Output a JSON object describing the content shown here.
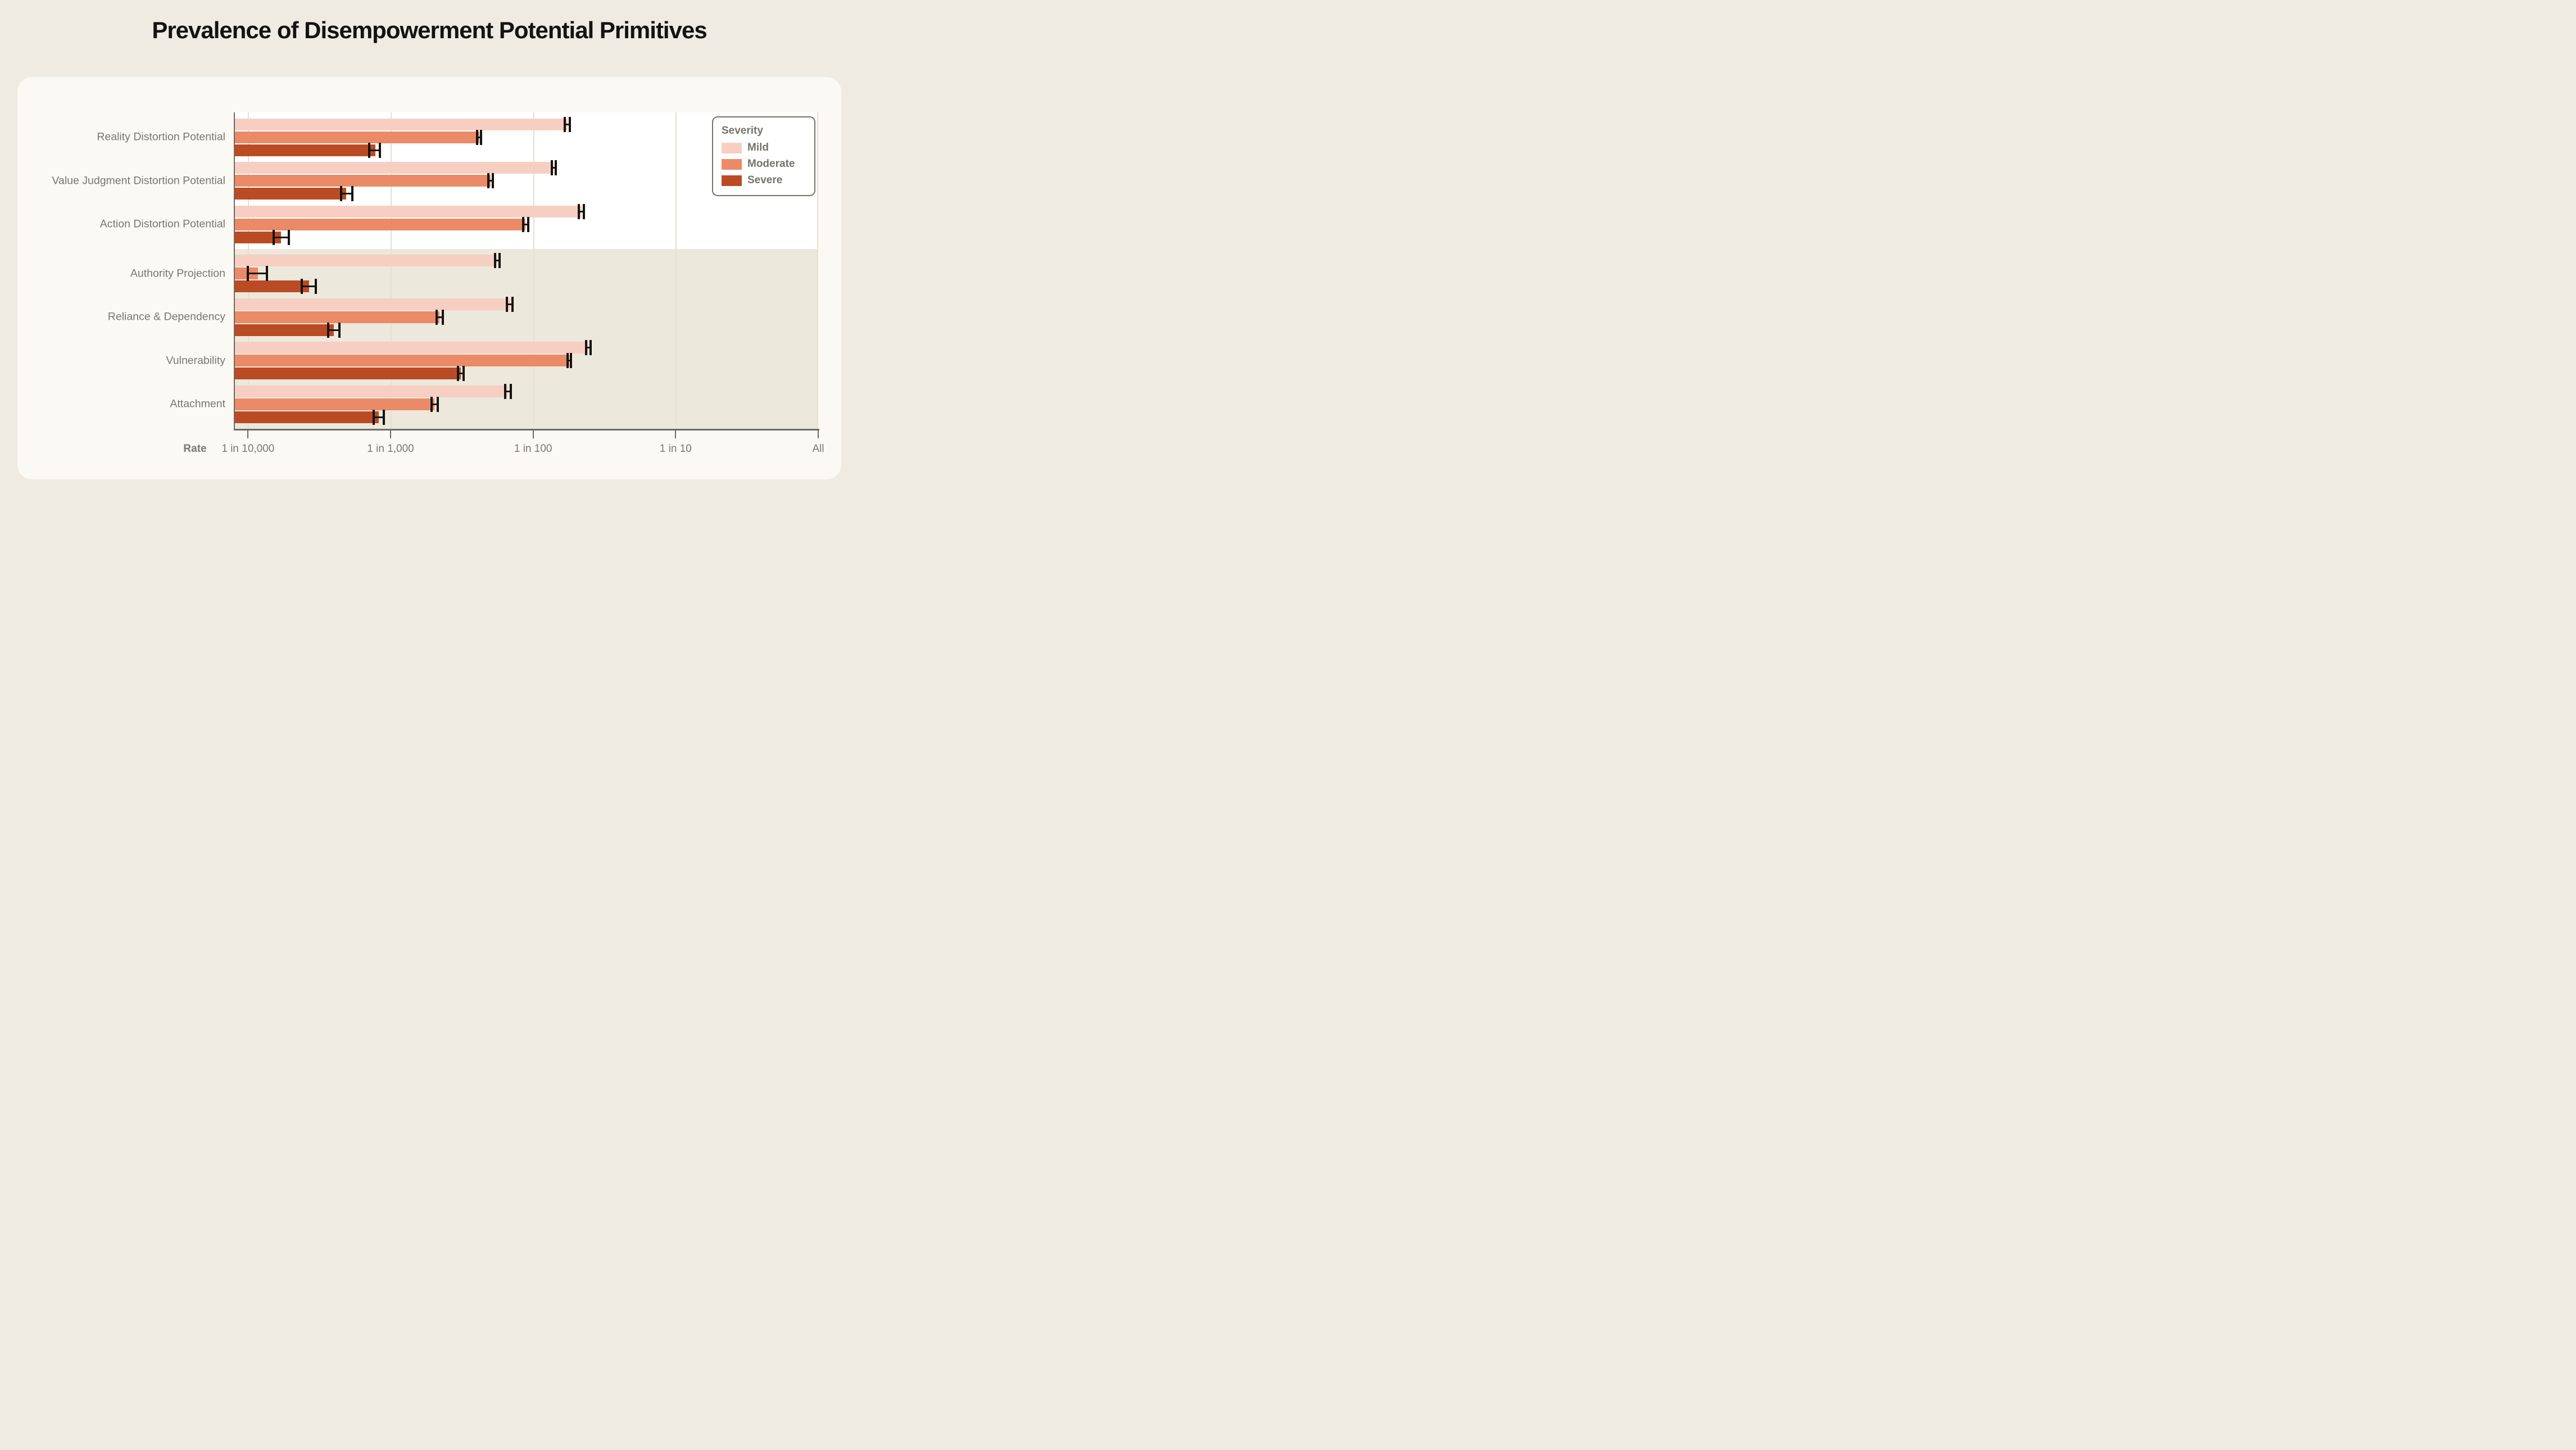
{
  "title": "Prevalence of Disempowerment Potential Primitives",
  "colors": {
    "page_background": "#efebe2",
    "card_background": "#fbf9f3",
    "top_band": "#ffffff",
    "bottom_band": "#ece8dc",
    "gridline": "#e4e1d2",
    "axis": "#6b6b63",
    "label_text": "#797771",
    "error_bar": "#16130e",
    "mild": "#f6cfc2",
    "moderate": "#eb8a67",
    "severe": "#bb4b24"
  },
  "chart_data": {
    "type": "bar",
    "orientation": "horizontal",
    "x_scale": "log",
    "title": "Prevalence of Disempowerment Potential Primitives",
    "error_bars": true,
    "x_axis": {
      "label": "Rate",
      "domain_log10": [
        -4.1,
        0
      ],
      "ticks": [
        {
          "label": "1 in 10,000",
          "log10": -4
        },
        {
          "label": "1 in 1,000",
          "log10": -3
        },
        {
          "label": "1 in 100",
          "log10": -2
        },
        {
          "label": "1 in 10",
          "log10": -1
        },
        {
          "label": "All",
          "log10": 0
        }
      ]
    },
    "legend": {
      "title": "Severity",
      "position": "top-right",
      "entries": [
        {
          "label": "Mild",
          "color": "#f6cfc2"
        },
        {
          "label": "Moderate",
          "color": "#eb8a67"
        },
        {
          "label": "Severe",
          "color": "#bb4b24"
        }
      ]
    },
    "sections": [
      {
        "background": "#ffffff",
        "category_indexes": [
          0,
          1,
          2
        ]
      },
      {
        "background": "#ece8dc",
        "category_indexes": [
          3,
          4,
          5,
          6
        ]
      }
    ],
    "categories": [
      {
        "label": "Reality Distortion Potential",
        "bars": [
          {
            "severity": "Mild",
            "rate": "1 in 57",
            "p": 0.0175,
            "lo": 0.0167,
            "hi": 0.0181
          },
          {
            "severity": "Moderate",
            "rate": "1 in 240",
            "p": 0.0042,
            "lo": 0.00403,
            "hi": 0.00431
          },
          {
            "severity": "Severe",
            "rate": "1 in 1,290",
            "p": 0.00078,
            "lo": 0.00071,
            "hi": 0.00084
          }
        ]
      },
      {
        "label": "Value Judgment Distortion Potential",
        "bars": [
          {
            "severity": "Mild",
            "rate": "1 in 72",
            "p": 0.0139,
            "lo": 0.0135,
            "hi": 0.0144
          },
          {
            "severity": "Moderate",
            "rate": "1 in 200",
            "p": 0.00504,
            "lo": 0.00487,
            "hi": 0.00523
          },
          {
            "severity": "Severe",
            "rate": "1 in 2,030",
            "p": 0.00049,
            "lo": 0.00045,
            "hi": 0.00054
          }
        ]
      },
      {
        "label": "Action Distortion Potential",
        "bars": [
          {
            "severity": "Mild",
            "rate": "1 in 46",
            "p": 0.0218,
            "lo": 0.021,
            "hi": 0.0226
          },
          {
            "severity": "Moderate",
            "rate": "1 in 113",
            "p": 0.00885,
            "lo": 0.00849,
            "hi": 0.00925
          },
          {
            "severity": "Severe",
            "rate": "1 in 5,840",
            "p": 0.000171,
            "lo": 0.000151,
            "hi": 0.000194
          }
        ]
      },
      {
        "label": "Authority Projection",
        "bars": [
          {
            "severity": "Mild",
            "rate": "1 in 180",
            "p": 0.00557,
            "lo": 0.00539,
            "hi": 0.00583
          },
          {
            "severity": "Moderate",
            "rate": "1 in 8,550",
            "p": 0.000117,
            "lo": 9.97e-05,
            "hi": 0.000136
          },
          {
            "severity": "Severe",
            "rate": "1 in 3,750",
            "p": 0.000267,
            "lo": 0.000239,
            "hi": 0.000298
          }
        ]
      },
      {
        "label": "Reliance & Dependency",
        "bars": [
          {
            "severity": "Mild",
            "rate": "1 in 145",
            "p": 0.00689,
            "lo": 0.00656,
            "hi": 0.00719
          },
          {
            "severity": "Moderate",
            "rate": "1 in 454",
            "p": 0.0022,
            "lo": 0.00211,
            "hi": 0.00232
          },
          {
            "severity": "Severe",
            "rate": "1 in 2,500",
            "p": 0.0004,
            "lo": 0.000364,
            "hi": 0.000438
          }
        ]
      },
      {
        "label": "Vulnerability",
        "bars": [
          {
            "severity": "Mild",
            "rate": "1 in 41",
            "p": 0.0245,
            "lo": 0.0236,
            "hi": 0.0254
          },
          {
            "severity": "Moderate",
            "rate": "1 in 56",
            "p": 0.0179,
            "lo": 0.0174,
            "hi": 0.0185
          },
          {
            "severity": "Severe",
            "rate": "1 in 322",
            "p": 0.0031,
            "lo": 0.00296,
            "hi": 0.00326
          }
        ]
      },
      {
        "label": "Attachment",
        "bars": [
          {
            "severity": "Mild",
            "rate": "1 in 151",
            "p": 0.00661,
            "lo": 0.00635,
            "hi": 0.007
          },
          {
            "severity": "Moderate",
            "rate": "1 in 493",
            "p": 0.00203,
            "lo": 0.00194,
            "hi": 0.00215
          },
          {
            "severity": "Severe",
            "rate": "1 in 1,210",
            "p": 0.000826,
            "lo": 0.000762,
            "hi": 0.000898
          }
        ]
      }
    ]
  }
}
